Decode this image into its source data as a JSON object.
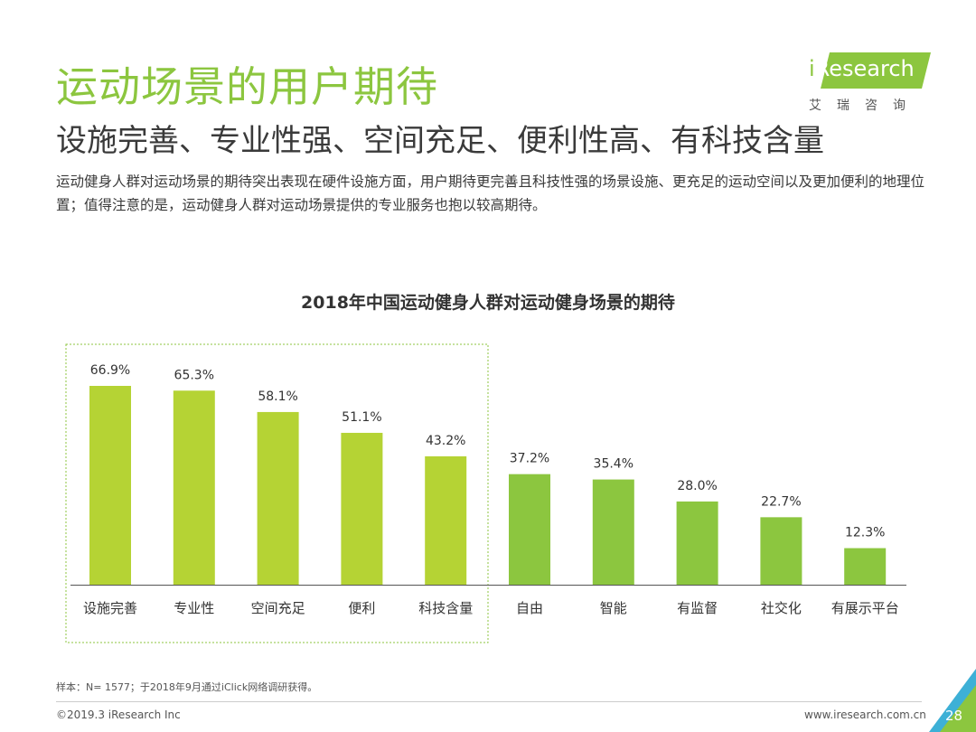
{
  "header": {
    "title": "运动场景的用户期待",
    "subtitle": "设施完善、专业性强、空间充足、便利性高、有科技含量",
    "description": "运动健身人群对运动场景的期待突出表现在硬件设施方面，用户期待更完善且科技性强的场景设施、更充足的运动空间以及更加便利的地理位置；值得注意的是，运动健身人群对运动场景提供的专业服务也抱以较高期待。"
  },
  "logo": {
    "text_prefix": "i",
    "text_rest": "Research",
    "cn": "艾瑞咨询",
    "color": "#8cc63f"
  },
  "chart_data": {
    "type": "bar",
    "title": "2018年中国运动健身人群对运动健身场景的期待",
    "categories": [
      "设施完善",
      "专业性",
      "空间充足",
      "便利",
      "科技含量",
      "自由",
      "智能",
      "有监督",
      "社交化",
      "有展示平台"
    ],
    "values": [
      66.9,
      65.3,
      58.1,
      51.1,
      43.2,
      37.2,
      35.4,
      28.0,
      22.7,
      12.3
    ],
    "labels": [
      "66.9%",
      "65.3%",
      "58.1%",
      "51.1%",
      "43.2%",
      "37.2%",
      "35.4%",
      "28.0%",
      "22.7%",
      "12.3%"
    ],
    "ylim": [
      0,
      70
    ],
    "highlighted_count": 5,
    "colors": {
      "highlighted": "#b5d334",
      "normal": "#8cc63f",
      "box": "#8cc63f"
    },
    "xlabel": "",
    "ylabel": "",
    "grid": false
  },
  "footer": {
    "footnote": "样本：N= 1577；于2018年9月通过iClick网络调研获得。",
    "copyright": "©2019.3  iResearch Inc",
    "website": "www.iresearch.com.cn",
    "page_number": "28"
  }
}
